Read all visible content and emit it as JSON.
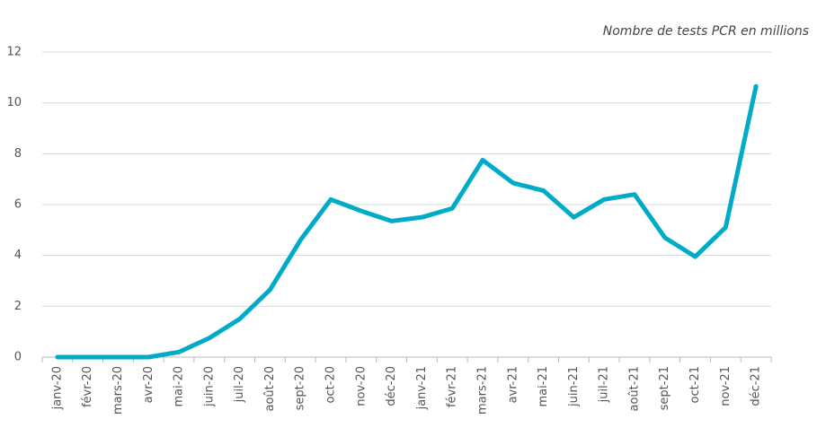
{
  "chart_data": {
    "type": "line",
    "title": "Nombre de tests PCR en millions",
    "categories": [
      "janv-20",
      "févr-20",
      "mars-20",
      "avr-20",
      "mai-20",
      "juin-20",
      "juil-20",
      "août-20",
      "sept-20",
      "oct-20",
      "nov-20",
      "déc-20",
      "janv-21",
      "févr-21",
      "mars-21",
      "avr-21",
      "mai-21",
      "juin-21",
      "juil-21",
      "août-21",
      "sept-21",
      "oct-21",
      "nov-21",
      "déc-21"
    ],
    "series": [
      {
        "name": "Nombre de tests PCR",
        "color": "#00abc8",
        "values": [
          0,
          0,
          0,
          0,
          0.2,
          0.75,
          1.5,
          2.65,
          4.6,
          6.2,
          5.75,
          5.35,
          5.5,
          5.85,
          7.75,
          6.85,
          6.55,
          5.5,
          6.2,
          6.4,
          4.7,
          3.95,
          5.1,
          10.65
        ]
      }
    ],
    "ylim": [
      0,
      12
    ],
    "yticks": [
      0,
      2,
      4,
      6,
      8,
      10,
      12
    ],
    "grid": true
  }
}
